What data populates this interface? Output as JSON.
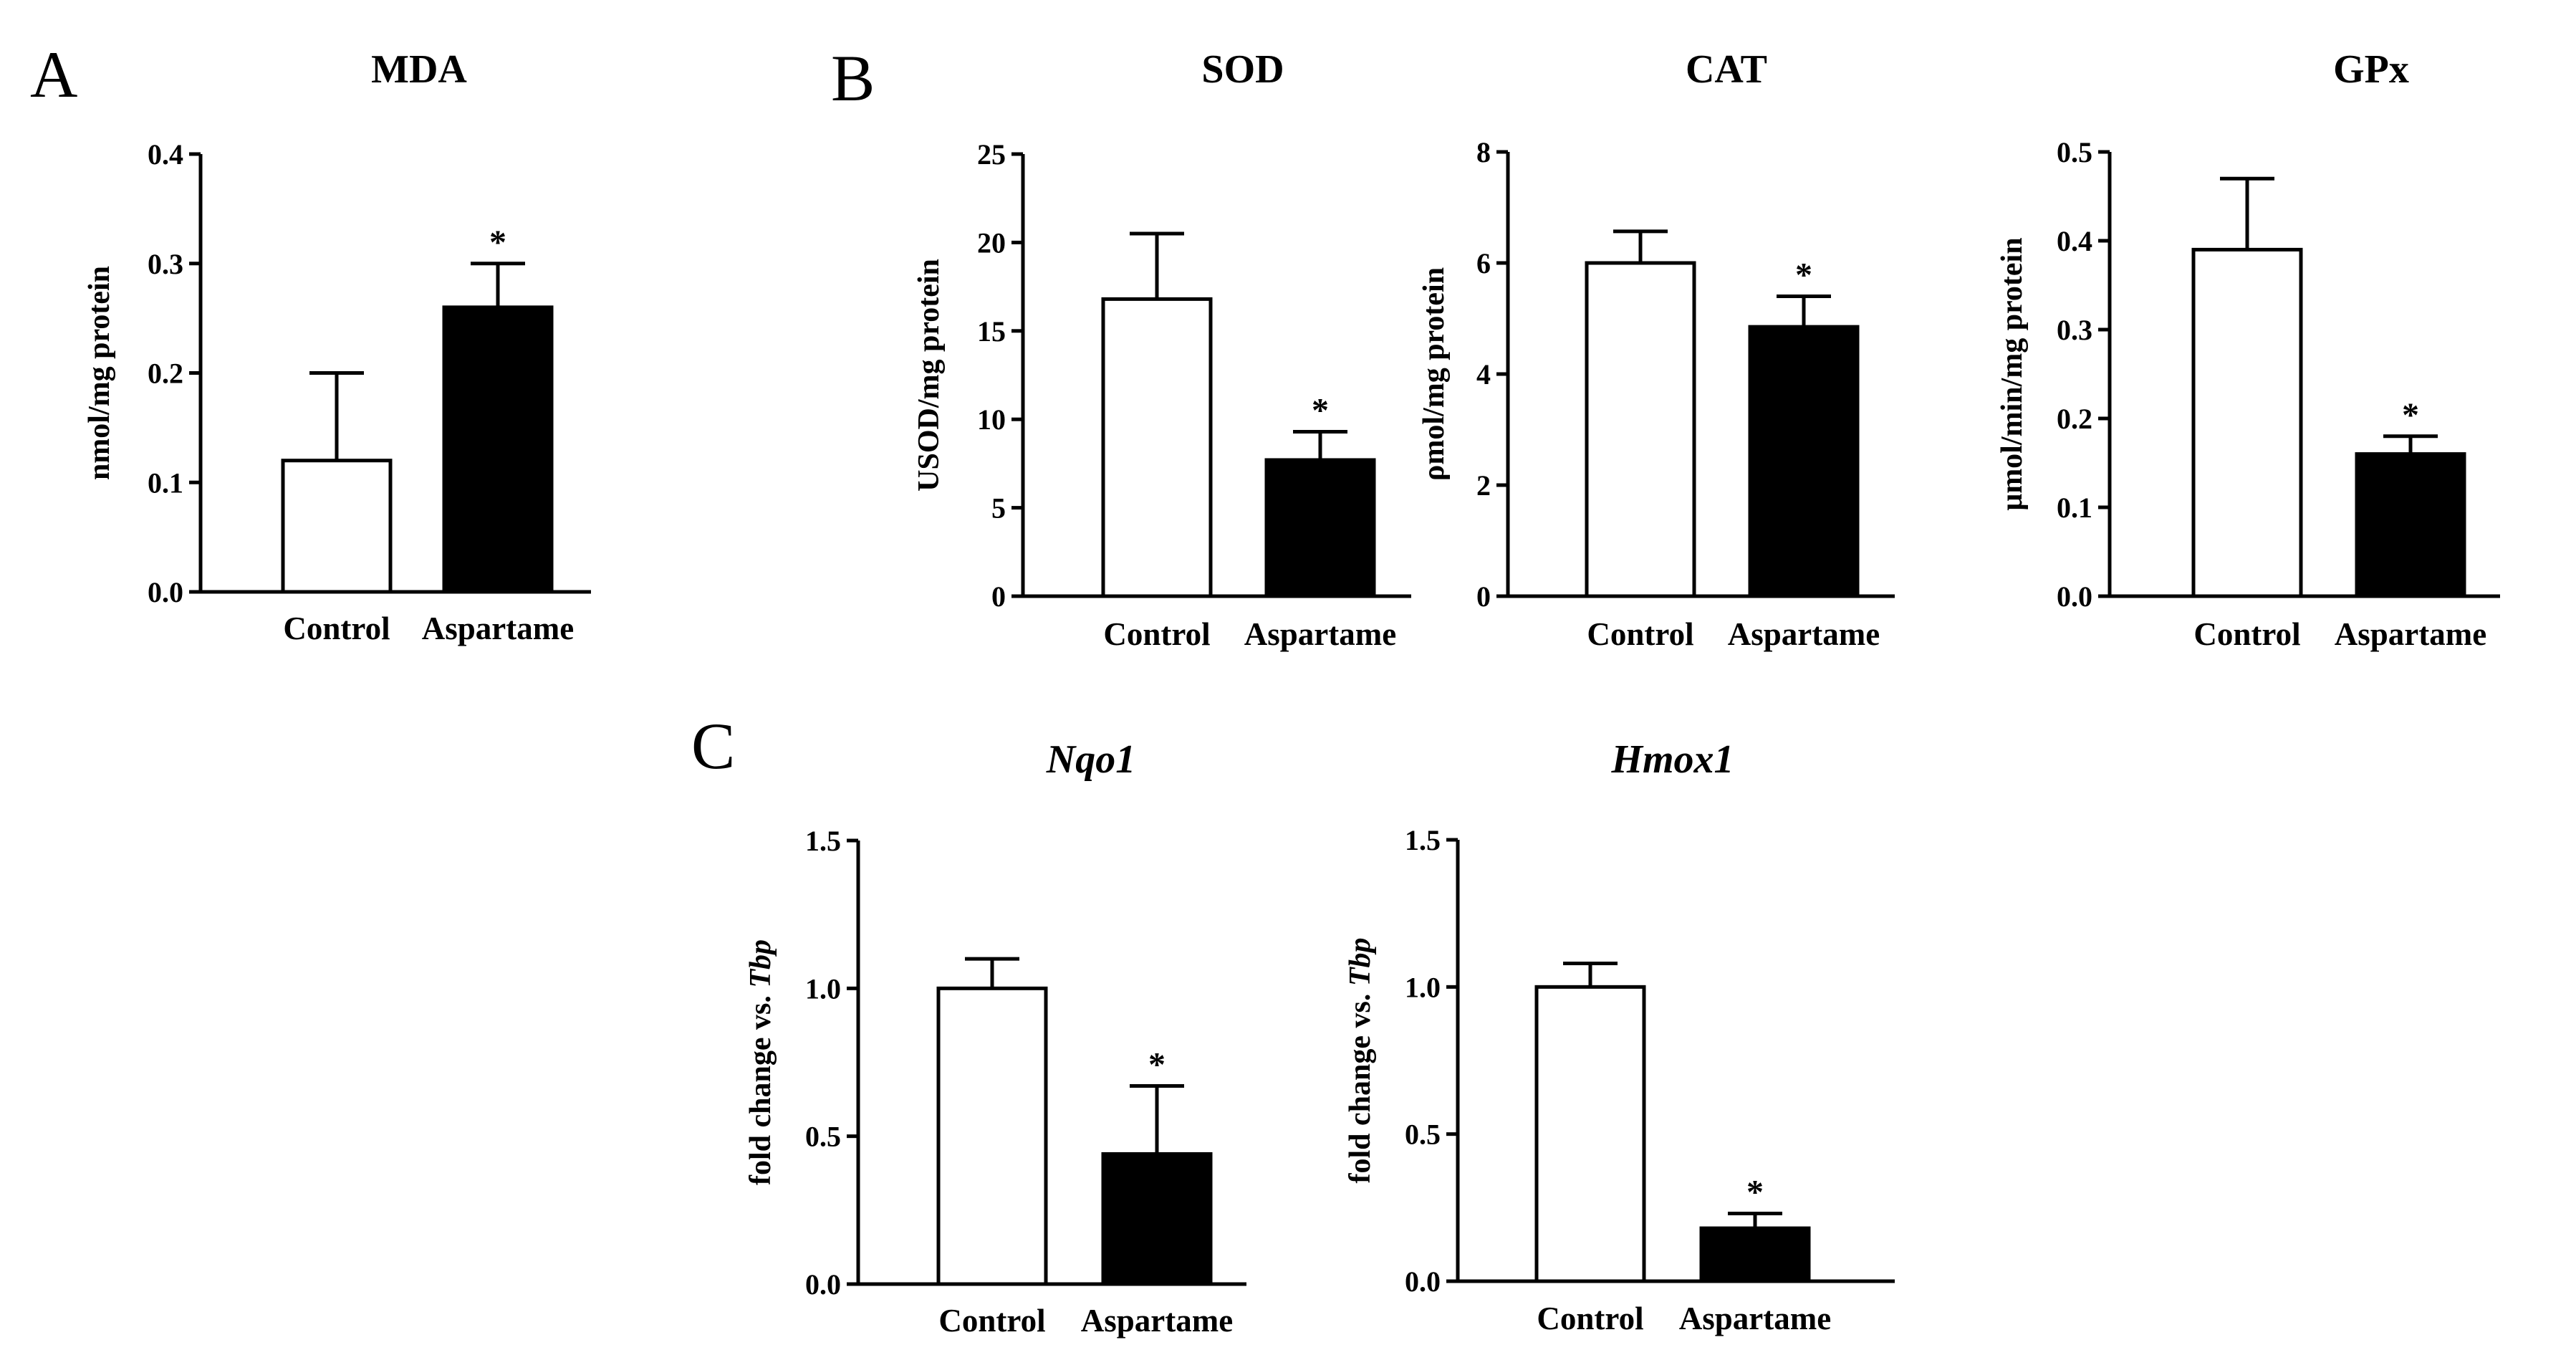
{
  "panels": [
    {
      "letter": "A"
    },
    {
      "letter": "B"
    },
    {
      "letter": "C"
    }
  ],
  "chart_data": [
    {
      "id": "mda",
      "type": "bar",
      "panel": "A",
      "title": "MDA",
      "title_italic": false,
      "ylabel": "nmol/mg protein",
      "ylim": [
        0,
        0.4
      ],
      "yticks": [
        "0.0",
        "0.1",
        "0.2",
        "0.3",
        "0.4"
      ],
      "categories": [
        "Control",
        "Aspartame"
      ],
      "values": [
        0.12,
        0.26
      ],
      "errors": [
        0.08,
        0.04
      ],
      "fills": [
        "#ffffff",
        "#000000"
      ],
      "significance": [
        "",
        "*"
      ]
    },
    {
      "id": "sod",
      "type": "bar",
      "panel": "B",
      "title": "SOD",
      "title_italic": false,
      "ylabel": "USOD/mg protein",
      "ylim": [
        0,
        25
      ],
      "yticks": [
        "0",
        "5",
        "10",
        "15",
        "20",
        "25"
      ],
      "categories": [
        "Control",
        "Aspartame"
      ],
      "values": [
        16.8,
        7.7
      ],
      "errors": [
        3.7,
        1.6
      ],
      "fills": [
        "#ffffff",
        "#000000"
      ],
      "significance": [
        "",
        "*"
      ]
    },
    {
      "id": "cat",
      "type": "bar",
      "panel": "B",
      "title": "CAT",
      "title_italic": false,
      "ylabel": "ρmol/mg protein",
      "ylim": [
        0,
        8
      ],
      "yticks": [
        "0",
        "2",
        "4",
        "6",
        "8"
      ],
      "categories": [
        "Control",
        "Aspartame"
      ],
      "values": [
        6.0,
        4.85
      ],
      "errors": [
        0.57,
        0.55
      ],
      "fills": [
        "#ffffff",
        "#000000"
      ],
      "significance": [
        "",
        "*"
      ]
    },
    {
      "id": "gpx",
      "type": "bar",
      "panel": "B",
      "title": "GPx",
      "title_italic": false,
      "ylabel": "μmol/min/mg protein",
      "ylim": [
        0,
        0.5
      ],
      "yticks": [
        "0.0",
        "0.1",
        "0.2",
        "0.3",
        "0.4",
        "0.5"
      ],
      "categories": [
        "Control",
        "Aspartame"
      ],
      "values": [
        0.39,
        0.16
      ],
      "errors": [
        0.08,
        0.02
      ],
      "fills": [
        "#ffffff",
        "#000000"
      ],
      "significance": [
        "",
        "*"
      ]
    },
    {
      "id": "nqo1",
      "type": "bar",
      "panel": "C",
      "title": "Nqo1",
      "title_italic": true,
      "ylabel": "fold change vs.",
      "ylabel_suffix": "Tbp",
      "ylim": [
        0,
        1.5
      ],
      "yticks": [
        "0.0",
        "0.5",
        "1.0",
        "1.5"
      ],
      "categories": [
        "Control",
        "Aspartame"
      ],
      "values": [
        1.0,
        0.44
      ],
      "errors": [
        0.1,
        0.23
      ],
      "fills": [
        "#ffffff",
        "#000000"
      ],
      "significance": [
        "",
        "*"
      ]
    },
    {
      "id": "hmox1",
      "type": "bar",
      "panel": "C",
      "title": "Hmox1",
      "title_italic": true,
      "ylabel": "fold change vs.",
      "ylabel_suffix": "Tbp",
      "ylim": [
        0,
        1.5
      ],
      "yticks": [
        "0.0",
        "0.5",
        "1.0",
        "1.5"
      ],
      "categories": [
        "Control",
        "Aspartame"
      ],
      "values": [
        1.0,
        0.18
      ],
      "errors": [
        0.08,
        0.05
      ],
      "fills": [
        "#ffffff",
        "#000000"
      ],
      "significance": [
        "",
        "*"
      ]
    }
  ]
}
